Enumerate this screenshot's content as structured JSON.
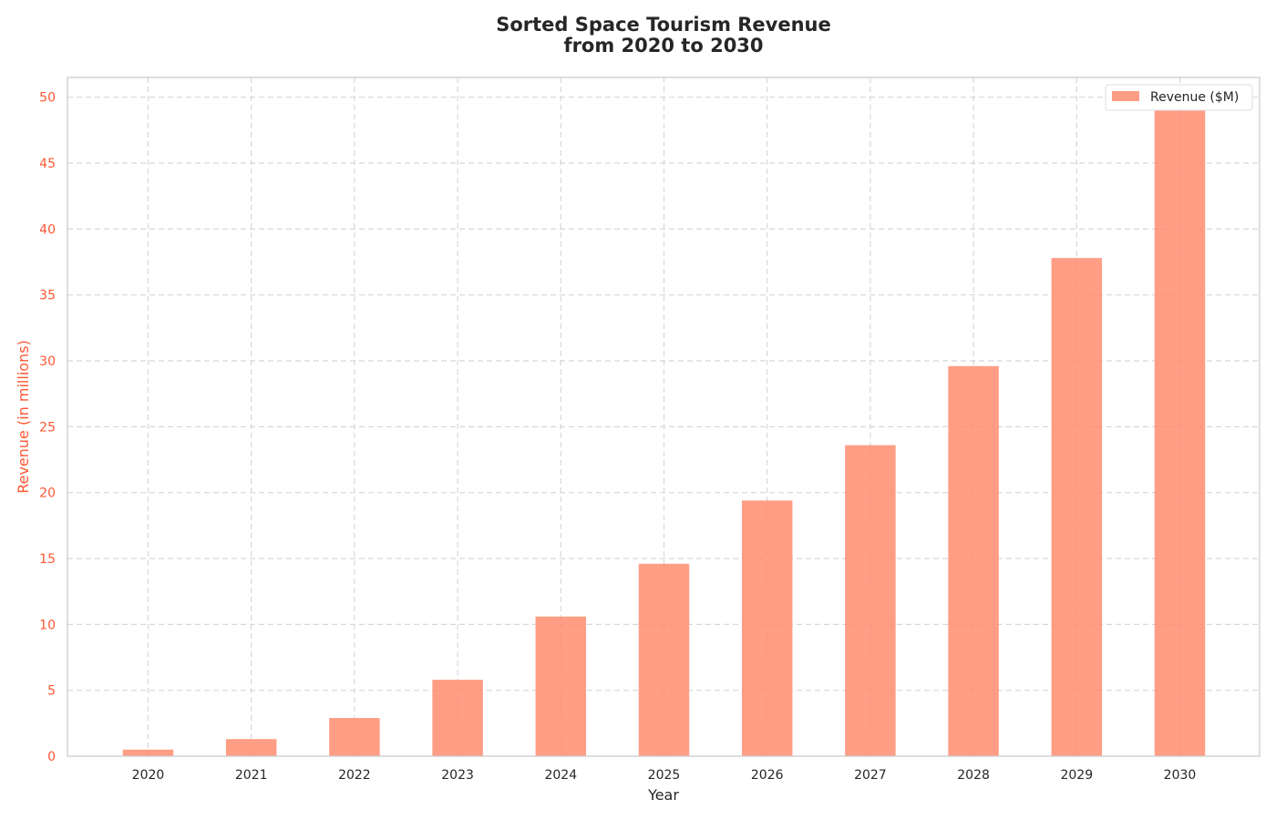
{
  "chart_data": {
    "type": "bar",
    "title_line1": "Sorted Space Tourism Revenue",
    "title_line2": "from 2020 to 2030",
    "xlabel": "Year",
    "ylabel": "Revenue (in millions)",
    "categories": [
      "2020",
      "2021",
      "2022",
      "2023",
      "2024",
      "2025",
      "2026",
      "2027",
      "2028",
      "2029",
      "2030"
    ],
    "series": [
      {
        "name": "Revenue ($M)",
        "values": [
          0.5,
          1.3,
          2.9,
          5.8,
          10.6,
          14.6,
          19.4,
          23.6,
          29.6,
          37.8,
          49.0
        ]
      }
    ],
    "ylim": [
      0,
      51.5
    ],
    "yticks": [
      0,
      5,
      10,
      15,
      20,
      25,
      30,
      35,
      40,
      45,
      50
    ],
    "grid": true,
    "legend_position": "top-right",
    "colors": {
      "bar": "#ff8c70",
      "ylabel": "#ff5733",
      "ytick": "#ff5733",
      "grid": "#d5d8dc",
      "spine": "#cccccc"
    }
  }
}
